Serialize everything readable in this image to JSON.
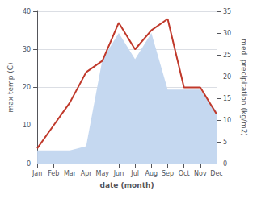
{
  "chart_data": {
    "type": "line",
    "xlabel": "date (month)",
    "ylabel": "max temp (C)",
    "y2label": "med. precipitation (kg/m2)",
    "categories": [
      "Jan",
      "Feb",
      "Mar",
      "Apr",
      "May",
      "Jun",
      "Jul",
      "Aug",
      "Sep",
      "Oct",
      "Nov",
      "Dec"
    ],
    "series": [
      {
        "type": "area",
        "axis": "y2",
        "color": "#c5d8f0",
        "values": [
          3,
          3,
          3,
          4,
          24,
          30,
          24,
          30,
          17,
          17,
          17,
          12
        ]
      },
      {
        "type": "line",
        "color": "#c0392b",
        "values": [
          4,
          10,
          16,
          24,
          27,
          37,
          30,
          35,
          38,
          20,
          20,
          13
        ]
      }
    ],
    "ylim": [
      0,
      40
    ],
    "yticks": [
      0,
      10,
      20,
      30,
      40
    ],
    "y2lim": [
      0,
      35
    ],
    "y2ticks": [
      0,
      5,
      10,
      15,
      20,
      25,
      30,
      35
    ],
    "grid": true
  }
}
